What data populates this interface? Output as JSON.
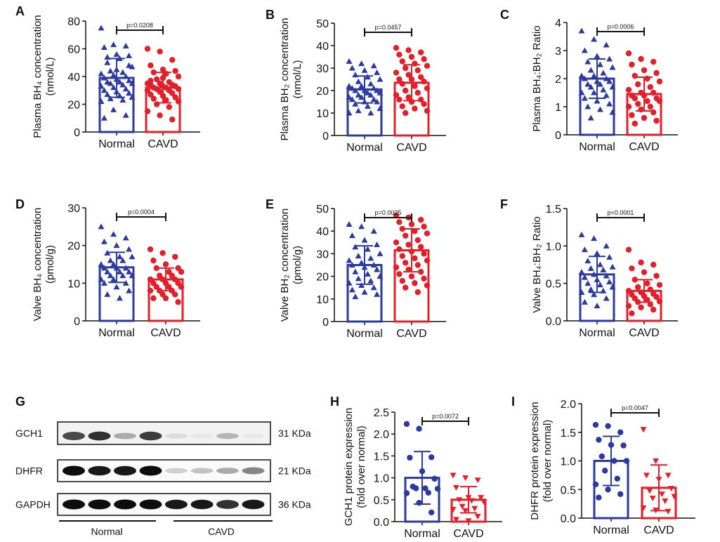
{
  "colors": {
    "normal": "#2b3aa0",
    "cavd": "#e3202a",
    "axis": "#111111"
  },
  "chart_data": [
    {
      "panel": "A",
      "type": "bar",
      "title": "",
      "ylabel": [
        "Plasma BH₄ concentration",
        "(nmol/L)"
      ],
      "ylim": [
        0,
        80
      ],
      "yticks": [
        "0",
        "20",
        "40",
        "60",
        "80"
      ],
      "categories": [
        "Normal",
        "CAVD"
      ],
      "p_value": "p=0.0208",
      "series": [
        {
          "name": "Normal",
          "marker": "triangle",
          "mean": 39,
          "sd": 14,
          "points": [
            75,
            63,
            62,
            61,
            56,
            55,
            54,
            53,
            47,
            44,
            43,
            42,
            41,
            40,
            39,
            38,
            37,
            36,
            36,
            35,
            35,
            34,
            33,
            32,
            31,
            30,
            29,
            28,
            27,
            26,
            25,
            24,
            23,
            22,
            16,
            12,
            10,
            45,
            48,
            50
          ]
        },
        {
          "name": "CAVD",
          "marker": "circle",
          "mean": 32,
          "sd": 11,
          "points": [
            60,
            58,
            52,
            48,
            45,
            44,
            43,
            42,
            40,
            38,
            36,
            35,
            35,
            34,
            34,
            33,
            33,
            32,
            32,
            31,
            31,
            30,
            30,
            29,
            28,
            27,
            26,
            25,
            24,
            23,
            22,
            20,
            18,
            15,
            12,
            9,
            37,
            39
          ]
        }
      ]
    },
    {
      "panel": "B",
      "type": "bar",
      "title": "",
      "ylabel": [
        "Plasma  BH₂ concentration",
        "(nmol/L)"
      ],
      "ylim": [
        0,
        50
      ],
      "yticks": [
        "0",
        "10",
        "20",
        "30",
        "40",
        "50"
      ],
      "categories": [
        "Normal",
        "CAVD"
      ],
      "p_value": "p=0.0457",
      "series": [
        {
          "name": "Normal",
          "marker": "triangle",
          "mean": 20.5,
          "sd": 6,
          "points": [
            33,
            32,
            31,
            30,
            29,
            28,
            27,
            26,
            25,
            24,
            23,
            22,
            22,
            21,
            21,
            20,
            20,
            20,
            19,
            19,
            18,
            18,
            17,
            17,
            16,
            16,
            15,
            15,
            14,
            13,
            12,
            11,
            10,
            10
          ]
        },
        {
          "name": "CAVD",
          "marker": "circle",
          "mean": 23.5,
          "sd": 8,
          "points": [
            39,
            38,
            37,
            36,
            35,
            34,
            33,
            32,
            31,
            30,
            29,
            28,
            27,
            26,
            25,
            25,
            24,
            23,
            22,
            21,
            20,
            19,
            18,
            17,
            16,
            16,
            15,
            14,
            13,
            12,
            11,
            10
          ]
        }
      ]
    },
    {
      "panel": "C",
      "type": "bar",
      "title": "",
      "ylabel": [
        "Plasma BH₄:BH₂ Ratio"
      ],
      "ylim": [
        0,
        4
      ],
      "yticks": [
        "0",
        "1",
        "2",
        "3",
        "4"
      ],
      "categories": [
        "Normal",
        "CAVD"
      ],
      "p_value": "p=0.0006",
      "series": [
        {
          "name": "Normal",
          "marker": "triangle",
          "mean": 2.0,
          "sd": 0.7,
          "points": [
            3.7,
            3.4,
            3.2,
            3.0,
            2.8,
            2.7,
            2.6,
            2.5,
            2.4,
            2.3,
            2.2,
            2.1,
            2.1,
            2.0,
            2.0,
            1.9,
            1.9,
            1.8,
            1.8,
            1.7,
            1.7,
            1.6,
            1.5,
            1.5,
            1.4,
            1.3,
            1.2,
            1.1,
            1.0,
            0.9,
            0.8,
            0.6
          ]
        },
        {
          "name": "CAVD",
          "marker": "circle",
          "mean": 1.45,
          "sd": 0.6,
          "points": [
            2.9,
            2.7,
            2.6,
            2.5,
            2.3,
            2.2,
            2.1,
            2.0,
            1.9,
            1.8,
            1.7,
            1.6,
            1.5,
            1.5,
            1.4,
            1.4,
            1.3,
            1.3,
            1.2,
            1.2,
            1.1,
            1.0,
            1.0,
            0.9,
            0.8,
            0.7,
            0.6,
            0.5,
            0.4
          ]
        }
      ]
    },
    {
      "panel": "D",
      "type": "bar",
      "title": "",
      "ylabel": [
        "Valve BH₄ concentration",
        "(pmol/g)"
      ],
      "ylim": [
        0,
        30
      ],
      "yticks": [
        "0",
        "10",
        "20",
        "30"
      ],
      "categories": [
        "Normal",
        "CAVD"
      ],
      "p_value": "p=0.0004",
      "series": [
        {
          "name": "Normal",
          "marker": "triangle",
          "mean": 14.2,
          "sd": 4,
          "points": [
            25,
            23,
            22,
            21,
            20,
            19,
            18,
            17,
            17,
            16,
            16,
            15,
            15,
            14,
            14,
            14,
            13,
            13,
            13,
            12,
            12,
            12,
            11,
            11,
            10,
            10,
            9,
            8,
            7,
            6
          ]
        },
        {
          "name": "CAVD",
          "marker": "circle",
          "mean": 11,
          "sd": 3,
          "points": [
            19,
            18,
            17,
            16,
            15,
            14,
            14,
            13,
            13,
            12,
            12,
            11,
            11,
            11,
            10,
            10,
            10,
            9,
            9,
            9,
            8,
            8,
            8,
            7,
            7,
            6,
            6,
            5
          ]
        }
      ]
    },
    {
      "panel": "E",
      "type": "bar",
      "title": "",
      "ylabel": [
        "Valve BH₂ concentration",
        "(pmol/g)"
      ],
      "ylim": [
        0,
        50
      ],
      "yticks": [
        "0",
        "10",
        "20",
        "30",
        "40",
        "50"
      ],
      "categories": [
        "Normal",
        "CAVD"
      ],
      "p_value": "p=0.0025",
      "series": [
        {
          "name": "Normal",
          "marker": "triangle",
          "mean": 25,
          "sd": 8.5,
          "points": [
            43,
            42,
            40,
            38,
            36,
            34,
            33,
            32,
            30,
            29,
            28,
            27,
            26,
            25,
            25,
            24,
            23,
            22,
            21,
            20,
            19,
            18,
            17,
            16,
            15,
            14,
            13,
            12,
            11
          ]
        },
        {
          "name": "CAVD",
          "marker": "circle",
          "mean": 31.5,
          "sd": 9.5,
          "points": [
            47,
            46,
            45,
            44,
            43,
            42,
            41,
            40,
            39,
            38,
            36,
            35,
            34,
            33,
            32,
            31,
            30,
            29,
            28,
            27,
            26,
            25,
            24,
            23,
            22,
            21,
            20,
            19,
            18,
            17,
            16,
            15,
            13
          ]
        }
      ]
    },
    {
      "panel": "F",
      "type": "bar",
      "title": "",
      "ylabel": [
        "Valve BH₄:BH₂ Ratio"
      ],
      "ylim": [
        0,
        1.5
      ],
      "yticks": [
        "0.0",
        "0.5",
        "1.0",
        "1.5"
      ],
      "categories": [
        "Normal",
        "CAVD"
      ],
      "p_value": "p<0.0001",
      "series": [
        {
          "name": "Normal",
          "marker": "triangle",
          "mean": 0.62,
          "sd": 0.24,
          "points": [
            1.15,
            1.1,
            1.0,
            0.95,
            0.9,
            0.85,
            0.8,
            0.75,
            0.72,
            0.7,
            0.68,
            0.65,
            0.62,
            0.6,
            0.58,
            0.55,
            0.52,
            0.5,
            0.48,
            0.45,
            0.42,
            0.4,
            0.38,
            0.35,
            0.3,
            0.25,
            0.2
          ]
        },
        {
          "name": "CAVD",
          "marker": "circle",
          "mean": 0.4,
          "sd": 0.15,
          "points": [
            0.95,
            0.78,
            0.75,
            0.7,
            0.65,
            0.6,
            0.55,
            0.5,
            0.48,
            0.45,
            0.42,
            0.4,
            0.38,
            0.36,
            0.35,
            0.33,
            0.32,
            0.3,
            0.28,
            0.26,
            0.25,
            0.22,
            0.2,
            0.18,
            0.15,
            0.1
          ]
        }
      ]
    },
    {
      "panel": "H",
      "type": "bar",
      "title": "",
      "ylabel": [
        "GCH1 protein expression",
        "(fold over normal)"
      ],
      "ylim": [
        0,
        2.5
      ],
      "yticks": [
        "0.0",
        "0.5",
        "1.0",
        "1.5",
        "2.0",
        "2.5"
      ],
      "categories": [
        "Normal",
        "CAVD"
      ],
      "p_value": "p=0.0072",
      "series": [
        {
          "name": "Normal",
          "marker": "circle",
          "mean": 1.0,
          "sd": 0.6,
          "points": [
            2.23,
            2.12,
            1.47,
            1.46,
            1.15,
            0.98,
            0.8,
            0.76,
            0.75,
            0.76,
            0.66,
            0.65,
            0.43,
            0.21
          ]
        },
        {
          "name": "CAVD",
          "marker": "inverted-triangle",
          "mean": 0.5,
          "sd": 0.3,
          "points": [
            1.06,
            1.0,
            0.95,
            0.78,
            0.55,
            0.55,
            0.5,
            0.48,
            0.45,
            0.35,
            0.3,
            0.28,
            0.25,
            0.12,
            0.05,
            0.02
          ]
        }
      ]
    },
    {
      "panel": "I",
      "type": "bar",
      "title": "",
      "ylabel": [
        "DHFR protein expression",
        "(fold over normal)"
      ],
      "ylim": [
        0,
        2.0
      ],
      "yticks": [
        "0.0",
        "0.5",
        "1.0",
        "1.5",
        "2.0"
      ],
      "categories": [
        "Normal",
        "CAVD"
      ],
      "p_value": "p=0.0047",
      "series": [
        {
          "name": "Normal",
          "marker": "circle",
          "mean": 1.0,
          "sd": 0.43,
          "points": [
            1.63,
            1.61,
            1.5,
            1.37,
            1.28,
            1.27,
            1.08,
            1.0,
            1.0,
            0.83,
            0.69,
            0.59,
            0.5,
            0.42,
            0.36
          ]
        },
        {
          "name": "CAVD",
          "marker": "inverted-triangle",
          "mean": 0.53,
          "sd": 0.4,
          "points": [
            1.55,
            1.0,
            0.75,
            0.75,
            0.68,
            0.52,
            0.48,
            0.42,
            0.38,
            0.35,
            0.3,
            0.18,
            0.14,
            0.12
          ]
        }
      ]
    }
  ],
  "western_blot": {
    "panel": "G",
    "rows": [
      {
        "protein": "GCH1",
        "size": "31 KDa",
        "intensities": [
          0.75,
          0.85,
          0.35,
          0.8,
          0.15,
          0.1,
          0.3,
          0.1
        ]
      },
      {
        "protein": "DHFR",
        "size": "21 KDa",
        "intensities": [
          1,
          0.95,
          0.95,
          1,
          0.2,
          0.25,
          0.35,
          0.5
        ]
      },
      {
        "protein": "GAPDH",
        "size": "36 KDa",
        "intensities": [
          1,
          1,
          1,
          1,
          0.95,
          0.95,
          0.85,
          0.95
        ]
      }
    ],
    "groups": [
      "Normal",
      "CAVD"
    ]
  }
}
